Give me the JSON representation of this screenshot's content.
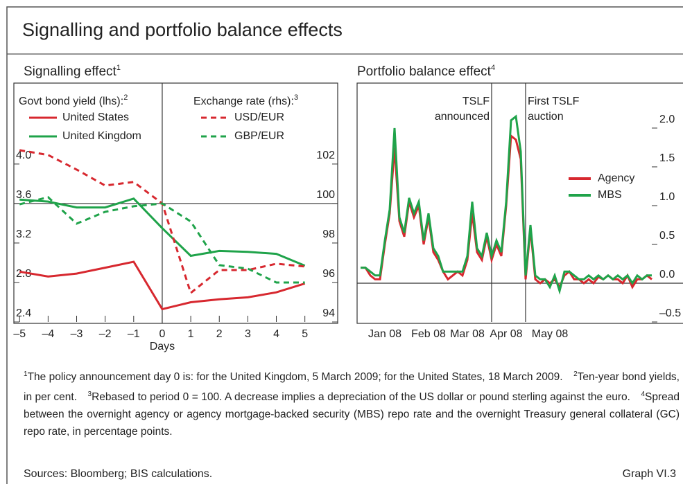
{
  "title": "Signalling and portfolio balance effects",
  "footnotes": [
    {
      "marker": "1",
      "text": "The policy announcement day 0 is: for the United Kingdom, 5 March 2009; for the United States, 18 March 2009."
    },
    {
      "marker": "2",
      "text": "Ten-year bond yields, in per cent."
    },
    {
      "marker": "3",
      "text": "Rebased to period 0 = 100. A decrease implies a depreciation of the US dollar or pound sterling against the euro."
    },
    {
      "marker": "4",
      "text": "Spread between the overnight agency or agency mortgage-backed security (MBS) repo rate and the overnight Treasury general collateral (GC) repo rate, in percentage points."
    }
  ],
  "sources": "Sources: Bloomberg; BIS calculations.",
  "graph_label": "Graph VI.3",
  "chart_data": [
    {
      "type": "line",
      "title": "Signalling effect",
      "title_note": "1",
      "x": [
        -5,
        -4,
        -3,
        -2,
        -1,
        0,
        1,
        2,
        3,
        4,
        5
      ],
      "xlim": [
        -5.2,
        6.15
      ],
      "xticks": [
        {
          "value": -5,
          "label": "–5"
        },
        {
          "value": -4,
          "label": "–4"
        },
        {
          "value": -3,
          "label": "–3"
        },
        {
          "value": -2,
          "label": "–2"
        },
        {
          "value": -1,
          "label": "–1"
        },
        0,
        1,
        2,
        3,
        4,
        5
      ],
      "x_label": "Days",
      "ylim": [
        2.4,
        4.82
      ],
      "yticks": [
        {
          "value": 4.0,
          "label": "4.0"
        },
        3.6,
        3.2,
        2.8,
        2.4
      ],
      "y2lim": [
        94,
        106.1
      ],
      "y2ticks": [
        102,
        100,
        98,
        96,
        94
      ],
      "reference_lines": {
        "x": 0,
        "y2": 100
      },
      "legend_titles": {
        "y": {
          "text": "Govt bond yield (lhs):",
          "note": "2"
        },
        "y2": {
          "text": "Exchange rate (rhs):",
          "note": "3"
        }
      },
      "series": [
        {
          "name": "United States",
          "color": "#d7282f",
          "values": [
            2.91,
            2.86,
            2.89,
            2.95,
            3.01,
            2.53,
            2.6,
            2.63,
            2.65,
            2.7,
            2.79
          ]
        },
        {
          "name": "United Kingdom",
          "color": "#1fa34a",
          "values": [
            3.64,
            3.62,
            3.56,
            3.56,
            3.65,
            3.35,
            3.07,
            3.12,
            3.11,
            3.09,
            2.97
          ]
        },
        {
          "name": "USD/EUR",
          "color": "#d7282f",
          "dashed": true,
          "axis": "y2",
          "values": [
            102.7,
            102.46,
            101.72,
            100.91,
            101.09,
            100,
            95.47,
            96.63,
            96.63,
            96.95,
            96.81
          ]
        },
        {
          "name": "GBP/EUR",
          "color": "#1fa34a",
          "dashed": true,
          "axis": "y2",
          "values": [
            99.96,
            100.32,
            98.98,
            99.58,
            99.86,
            100,
            99.09,
            96.88,
            96.7,
            96.0,
            96.0
          ]
        }
      ]
    },
    {
      "type": "line",
      "title": "Portfolio balance effect",
      "title_note": "4",
      "categories": [
        null,
        null,
        null,
        null,
        null,
        "Jan 08",
        null,
        null,
        null,
        null,
        null,
        null,
        null,
        null,
        "Feb 08",
        null,
        null,
        null,
        null,
        null,
        null,
        null,
        "Mar 08",
        null,
        null,
        null,
        null,
        null,
        null,
        null,
        "Apr 08",
        null,
        null,
        null,
        null,
        null,
        null,
        null,
        null,
        "May 08",
        null,
        null,
        null,
        null,
        null,
        null,
        null,
        null,
        null,
        null,
        null,
        null,
        null,
        null,
        null,
        null,
        null,
        null,
        null,
        null,
        null
      ],
      "ylim": [
        -0.5,
        2.58
      ],
      "yticks": [
        {
          "value": 2.0,
          "label": "2.0"
        },
        1.5,
        {
          "value": 1.0,
          "label": "1.0"
        },
        0.5,
        {
          "value": 0,
          "label": "0.0"
        },
        {
          "value": -0.5,
          "label": "–0.5"
        }
      ],
      "y_axis_side": "right",
      "reference_lines": {
        "y": 0
      },
      "events": [
        {
          "at": 27,
          "label": [
            "TSLF",
            "announced"
          ],
          "side": "left"
        },
        {
          "at": 34,
          "label": [
            "First TSLF",
            "auction"
          ],
          "side": "right"
        }
      ],
      "series": [
        {
          "name": "Agency",
          "color": "#d7282f",
          "values": [
            0.2,
            0.2,
            0.1,
            0.05,
            0.05,
            0.5,
            0.9,
            1.75,
            0.8,
            0.6,
            1.05,
            0.85,
            1.0,
            0.5,
            0.85,
            0.4,
            0.3,
            0.15,
            0.05,
            0.1,
            0.15,
            0.1,
            0.3,
            0.9,
            0.4,
            0.3,
            0.6,
            0.3,
            0.5,
            0.35,
            1.0,
            1.9,
            1.85,
            1.6,
            0.05,
            0.7,
            0.05,
            0.0,
            0.05,
            0.0,
            0.05,
            -0.05,
            0.1,
            0.15,
            0.05,
            0.05,
            0.0,
            0.05,
            0.0,
            0.08,
            0.05,
            0.1,
            0.05,
            0.05,
            0.0,
            0.1,
            -0.05,
            0.05,
            0.05,
            0.1,
            0.05
          ]
        },
        {
          "name": "MBS",
          "color": "#1fa34a",
          "values": [
            0.2,
            0.2,
            0.15,
            0.1,
            0.1,
            0.55,
            0.95,
            2.0,
            0.85,
            0.65,
            1.1,
            0.9,
            1.05,
            0.55,
            0.9,
            0.45,
            0.35,
            0.15,
            0.15,
            0.15,
            0.15,
            0.15,
            0.35,
            1.05,
            0.45,
            0.35,
            0.65,
            0.35,
            0.55,
            0.4,
            1.05,
            2.1,
            2.15,
            1.7,
            0.1,
            0.75,
            0.1,
            0.05,
            0.05,
            -0.05,
            0.1,
            -0.1,
            0.15,
            0.15,
            0.1,
            0.05,
            0.05,
            0.1,
            0.05,
            0.1,
            0.05,
            0.1,
            0.05,
            0.1,
            0.05,
            0.1,
            0.0,
            0.1,
            0.05,
            0.1,
            0.1
          ]
        }
      ]
    }
  ]
}
